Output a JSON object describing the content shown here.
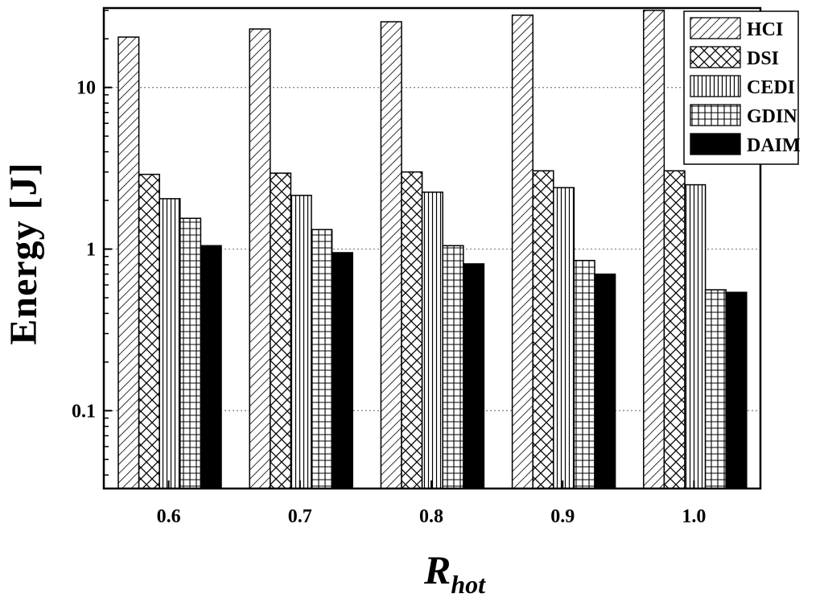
{
  "chart_data": {
    "type": "bar",
    "yscale": "log",
    "categories": [
      "0.6",
      "0.7",
      "0.8",
      "0.9",
      "1.0"
    ],
    "series": [
      {
        "name": "HCI",
        "pattern": "diagonal-hatch",
        "values": [
          20.5,
          23.0,
          25.5,
          28.0,
          30.0
        ]
      },
      {
        "name": "DSI",
        "pattern": "cross-hatch",
        "values": [
          2.9,
          2.95,
          3.0,
          3.05,
          3.05
        ]
      },
      {
        "name": "CEDI",
        "pattern": "vertical-lines",
        "values": [
          2.05,
          2.15,
          2.25,
          2.4,
          2.5
        ]
      },
      {
        "name": "GDIN",
        "pattern": "grid",
        "values": [
          1.55,
          1.32,
          1.05,
          0.85,
          0.56
        ]
      },
      {
        "name": "DAIM",
        "pattern": "solid",
        "values": [
          1.05,
          0.95,
          0.81,
          0.7,
          0.54
        ]
      }
    ],
    "yticks": [
      0.1,
      1,
      10
    ],
    "ytick_labels": [
      "0.1",
      "1",
      "10"
    ],
    "ylim": [
      0.033,
      31
    ],
    "ylabel": "Energy [J]",
    "xlabel_main": "R",
    "xlabel_sub": "hot",
    "legend_position": "top-right",
    "grid": "horizontal-dotted",
    "colors": {
      "bar_fill": "#ffffff",
      "bar_stroke": "#000000",
      "grid": "#888888",
      "solid": "#000000"
    }
  }
}
